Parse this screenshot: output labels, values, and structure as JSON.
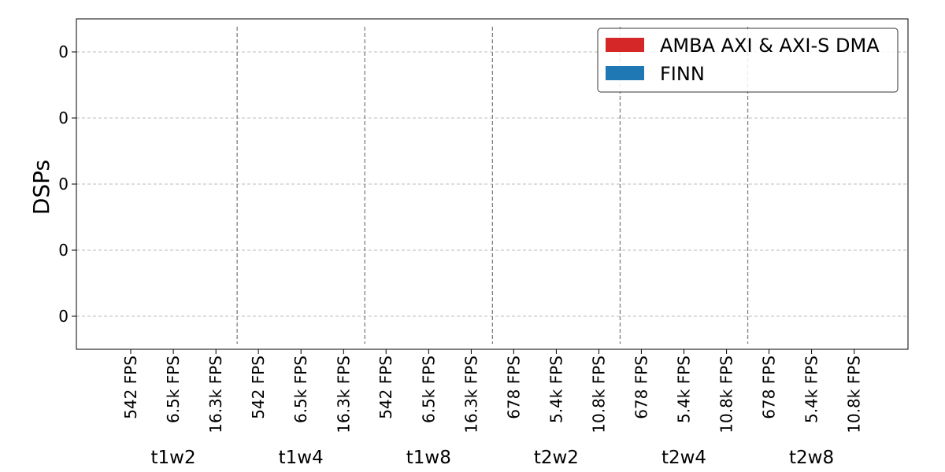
{
  "chart_data": {
    "type": "bar",
    "ylabel": "DSPs",
    "xlabel": "",
    "title": "",
    "y_tick_labels": [
      "0",
      "0",
      "0",
      "0",
      "0"
    ],
    "groups": [
      {
        "name": "t1w2",
        "categories": [
          "542 FPS",
          "6.5k FPS",
          "16.3k FPS"
        ]
      },
      {
        "name": "t1w4",
        "categories": [
          "542 FPS",
          "6.5k FPS",
          "16.3k FPS"
        ]
      },
      {
        "name": "t1w8",
        "categories": [
          "542 FPS",
          "6.5k FPS",
          "16.3k FPS"
        ]
      },
      {
        "name": "t2w2",
        "categories": [
          "678 FPS",
          "5.4k FPS",
          "10.8k FPS"
        ]
      },
      {
        "name": "t2w4",
        "categories": [
          "678 FPS",
          "5.4k FPS",
          "10.8k FPS"
        ]
      },
      {
        "name": "t2w8",
        "categories": [
          "678 FPS",
          "5.4k FPS",
          "10.8k FPS"
        ]
      }
    ],
    "series": [
      {
        "name": "AMBA AXI & AXI-S DMA",
        "color": "#d62728",
        "values": [
          0,
          0,
          0,
          0,
          0,
          0,
          0,
          0,
          0,
          0,
          0,
          0,
          0,
          0,
          0,
          0,
          0,
          0
        ]
      },
      {
        "name": "FINN",
        "color": "#1f77b4",
        "values": [
          0,
          0,
          0,
          0,
          0,
          0,
          0,
          0,
          0,
          0,
          0,
          0,
          0,
          0,
          0,
          0,
          0,
          0
        ]
      }
    ],
    "stacked": true,
    "grid": true,
    "legend_position": "top-right"
  }
}
